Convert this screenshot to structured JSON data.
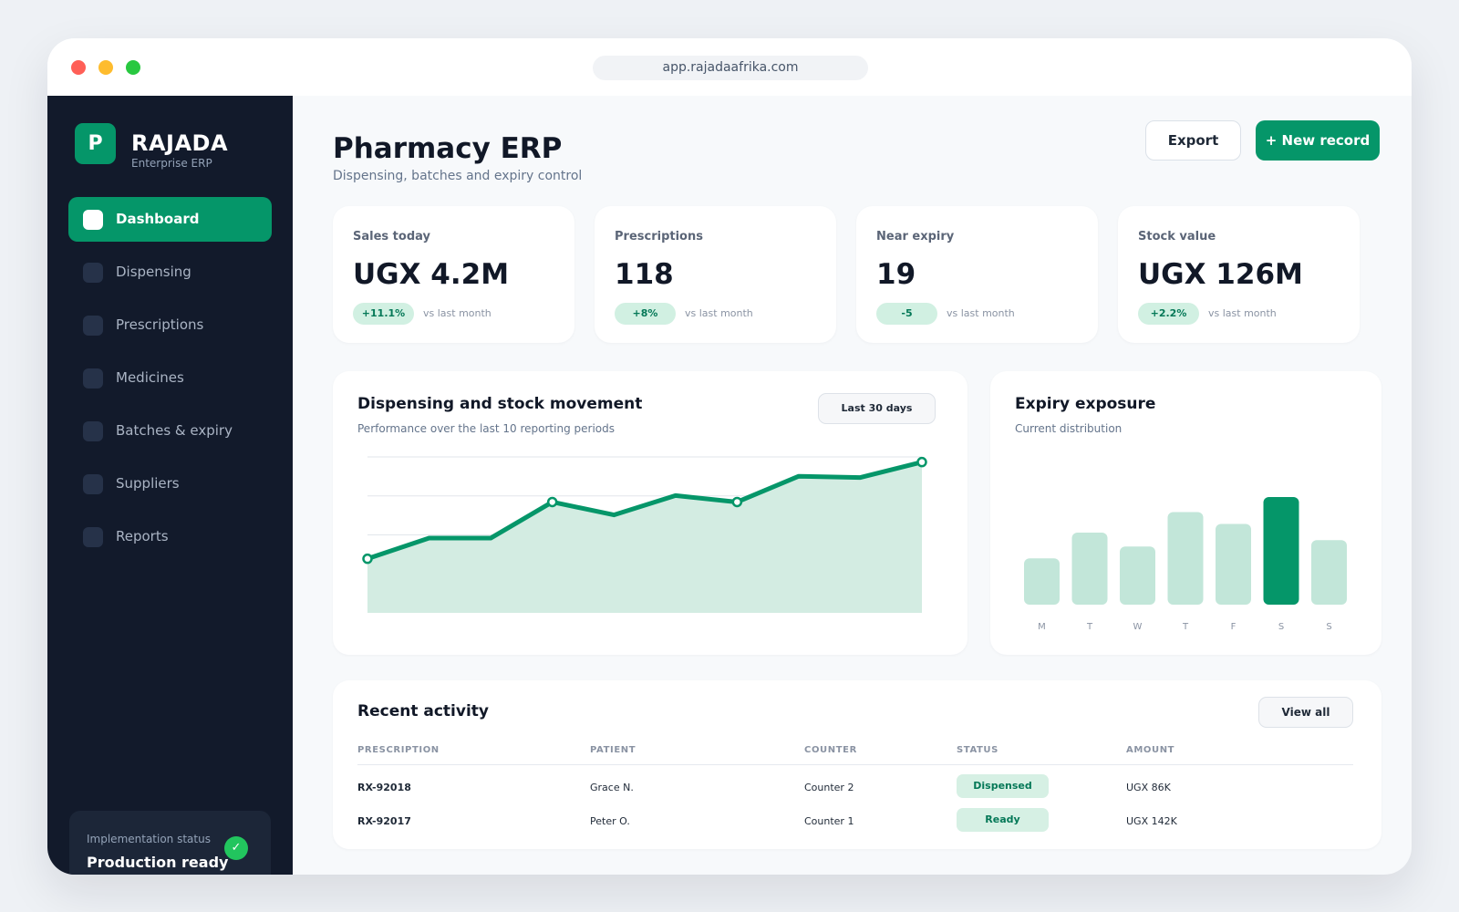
{
  "browser": {
    "url": "app.rajadaafrika.com"
  },
  "sidebar": {
    "logo_letter": "P",
    "brand": "RAJADA",
    "brand_sub": "Enterprise ERP",
    "items": [
      {
        "label": "Dashboard",
        "active": true
      },
      {
        "label": "Dispensing"
      },
      {
        "label": "Prescriptions"
      },
      {
        "label": "Medicines"
      },
      {
        "label": "Batches & expiry"
      },
      {
        "label": "Suppliers"
      },
      {
        "label": "Reports"
      }
    ],
    "status": {
      "label": "Implementation status",
      "value": "Production ready",
      "icon": "check-icon",
      "glyph": "✓"
    }
  },
  "header": {
    "title": "Pharmacy ERP",
    "subtitle": "Dispensing, batches and expiry control",
    "export_label": "Export",
    "new_label": "+ New record"
  },
  "kpis": [
    {
      "label": "Sales today",
      "value": "UGX 4.2M",
      "delta": "+11.1%",
      "note": "vs last month"
    },
    {
      "label": "Prescriptions",
      "value": "118",
      "delta": "+8%",
      "note": "vs last month"
    },
    {
      "label": "Near expiry",
      "value": "19",
      "delta": "-5",
      "note": "vs last month"
    },
    {
      "label": "Stock value",
      "value": "UGX 126M",
      "delta": "+2.2%",
      "note": "vs last month"
    }
  ],
  "movement_chart": {
    "title": "Dispensing and stock movement",
    "subtitle": "Performance over the last 10 reporting periods",
    "range_label": "Last 30 days"
  },
  "expiry_chart": {
    "title": "Expiry exposure",
    "subtitle": "Current distribution"
  },
  "chart_data": [
    {
      "type": "area",
      "title": "Dispensing and stock movement",
      "x": [
        1,
        2,
        3,
        4,
        5,
        6,
        7,
        8,
        9,
        10
      ],
      "values": [
        42,
        58,
        58,
        86,
        76,
        91,
        86,
        106,
        105,
        117
      ],
      "ylim": [
        0,
        121
      ],
      "grid": true,
      "highlighted_points": [
        0,
        3,
        6,
        9
      ]
    },
    {
      "type": "bar",
      "title": "Expiry exposure",
      "categories": [
        "M",
        "T",
        "W",
        "T",
        "F",
        "S",
        "S"
      ],
      "values": [
        43,
        67,
        54,
        86,
        75,
        100,
        60
      ],
      "ylim": [
        0,
        100
      ],
      "highlight_index": 5,
      "colors": {
        "bar": "#c2e6d9",
        "highlight": "#059669"
      }
    }
  ],
  "activity": {
    "title": "Recent activity",
    "view_all": "View all",
    "columns": [
      "PRESCRIPTION",
      "PATIENT",
      "COUNTER",
      "STATUS",
      "AMOUNT"
    ],
    "rows": [
      {
        "id": "RX-92018",
        "patient": "Grace N.",
        "counter": "Counter 2",
        "status": "Dispensed",
        "amount": "UGX 86K"
      },
      {
        "id": "RX-92017",
        "patient": "Peter O.",
        "counter": "Counter 1",
        "status": "Ready",
        "amount": "UGX 142K"
      }
    ]
  },
  "colors": {
    "accent": "#059669",
    "sidebar": "#121a2b",
    "area_fill": "#d3ece2"
  }
}
